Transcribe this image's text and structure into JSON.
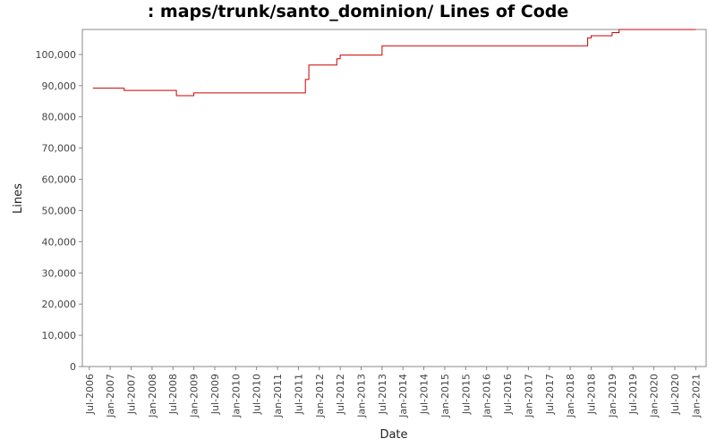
{
  "chart_data": {
    "type": "line",
    "title": ": maps/trunk/santo_dominion/ Lines of Code",
    "xlabel": "Date",
    "ylabel": "Lines",
    "ylim": [
      0,
      108000
    ],
    "xlim": [
      "2006-05",
      "2021-04"
    ],
    "grid": false,
    "legend": "none",
    "y_ticks": [
      {
        "value": 0,
        "label": "0"
      },
      {
        "value": 10000,
        "label": "10,000"
      },
      {
        "value": 20000,
        "label": "20,000"
      },
      {
        "value": 30000,
        "label": "30,000"
      },
      {
        "value": 40000,
        "label": "40,000"
      },
      {
        "value": 50000,
        "label": "50,000"
      },
      {
        "value": 60000,
        "label": "60,000"
      },
      {
        "value": 70000,
        "label": "70,000"
      },
      {
        "value": 80000,
        "label": "80,000"
      },
      {
        "value": 90000,
        "label": "90,000"
      },
      {
        "value": 100000,
        "label": "100,000"
      }
    ],
    "x_ticks": [
      {
        "value": "2006-07",
        "label": "Jul-2006"
      },
      {
        "value": "2007-01",
        "label": "Jan-2007"
      },
      {
        "value": "2007-07",
        "label": "Jul-2007"
      },
      {
        "value": "2008-01",
        "label": "Jan-2008"
      },
      {
        "value": "2008-07",
        "label": "Jul-2008"
      },
      {
        "value": "2009-01",
        "label": "Jan-2009"
      },
      {
        "value": "2009-07",
        "label": "Jul-2009"
      },
      {
        "value": "2010-01",
        "label": "Jan-2010"
      },
      {
        "value": "2010-07",
        "label": "Jul-2010"
      },
      {
        "value": "2011-01",
        "label": "Jan-2011"
      },
      {
        "value": "2011-07",
        "label": "Jul-2011"
      },
      {
        "value": "2012-01",
        "label": "Jan-2012"
      },
      {
        "value": "2012-07",
        "label": "Jul-2012"
      },
      {
        "value": "2013-01",
        "label": "Jan-2013"
      },
      {
        "value": "2013-07",
        "label": "Jul-2013"
      },
      {
        "value": "2014-01",
        "label": "Jan-2014"
      },
      {
        "value": "2014-07",
        "label": "Jul-2014"
      },
      {
        "value": "2015-01",
        "label": "Jan-2015"
      },
      {
        "value": "2015-07",
        "label": "Jul-2015"
      },
      {
        "value": "2016-01",
        "label": "Jan-2016"
      },
      {
        "value": "2016-07",
        "label": "Jul-2016"
      },
      {
        "value": "2017-01",
        "label": "Jan-2017"
      },
      {
        "value": "2017-07",
        "label": "Jul-2017"
      },
      {
        "value": "2018-01",
        "label": "Jan-2018"
      },
      {
        "value": "2018-07",
        "label": "Jul-2018"
      },
      {
        "value": "2019-01",
        "label": "Jan-2019"
      },
      {
        "value": "2019-07",
        "label": "Jul-2019"
      },
      {
        "value": "2020-01",
        "label": "Jan-2020"
      },
      {
        "value": "2020-07",
        "label": "Jul-2020"
      },
      {
        "value": "2021-01",
        "label": "Jan-2021"
      }
    ],
    "series": [
      {
        "color": "#cc0000",
        "step": true,
        "points": [
          {
            "x": "2006-08",
            "y": 89200
          },
          {
            "x": "2007-05",
            "y": 88500
          },
          {
            "x": "2008-08",
            "y": 86800
          },
          {
            "x": "2009-01",
            "y": 87700
          },
          {
            "x": "2011-09",
            "y": 92000
          },
          {
            "x": "2011-10",
            "y": 96600
          },
          {
            "x": "2012-06",
            "y": 98600
          },
          {
            "x": "2012-07",
            "y": 99800
          },
          {
            "x": "2013-07",
            "y": 102800
          },
          {
            "x": "2018-06",
            "y": 105300
          },
          {
            "x": "2018-07",
            "y": 106000
          },
          {
            "x": "2019-01",
            "y": 107000
          },
          {
            "x": "2019-03",
            "y": 108000
          },
          {
            "x": "2021-01",
            "y": 108000
          }
        ]
      }
    ]
  }
}
